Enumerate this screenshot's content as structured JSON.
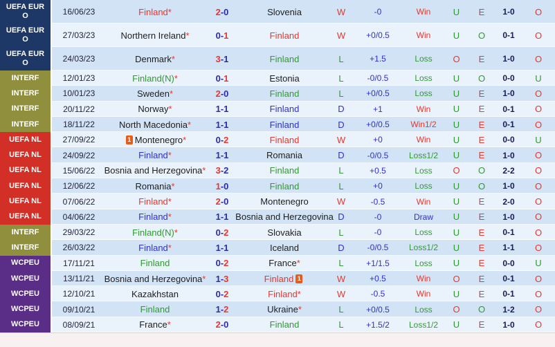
{
  "score_sep": "-",
  "card_label": "1",
  "colors": {
    "euro": "#1d3866",
    "interf": "#8f8f3d",
    "nl": "#d22f26",
    "wcpeu": "#5a2d87",
    "red": "#e8372c",
    "green": "#2e9b2e",
    "blue": "#3030d0",
    "navy": "#2c2caa",
    "dark": "#1e1e1e",
    "score2": "#1b1b55",
    "row_odd": "#d2e3f5",
    "row_even": "#eaf2fb",
    "card": "#e85c17",
    "footer": "#f7f2f1"
  },
  "rows": [
    {
      "tall": true,
      "comp_key": "euro",
      "comp_label": "UEFA EURO",
      "date": "16/06/23",
      "home": {
        "name": "Finland",
        "mark": "*",
        "c": "red"
      },
      "score": {
        "h": "2",
        "hc": "red",
        "a": "0",
        "ac": "navy"
      },
      "away": {
        "name": "Slovenia",
        "mark": "",
        "c": "dark"
      },
      "wdl": {
        "t": "W",
        "c": "red"
      },
      "hcap": "-0",
      "res": {
        "t": "Win",
        "c": "red"
      },
      "ou1": {
        "t": "U",
        "c": "green"
      },
      "eo": {
        "t": "E",
        "c": "red"
      },
      "sc2": "1-0",
      "ou2": {
        "t": "O",
        "c": "red"
      }
    },
    {
      "tall": true,
      "comp_key": "euro",
      "comp_label": "UEFA EURO",
      "date": "27/03/23",
      "home": {
        "name": "Northern Ireland",
        "mark": "*",
        "c": "dark"
      },
      "score": {
        "h": "0",
        "hc": "navy",
        "a": "1",
        "ac": "red"
      },
      "away": {
        "name": "Finland",
        "mark": "",
        "c": "red"
      },
      "wdl": {
        "t": "W",
        "c": "red"
      },
      "hcap": "+0/0.5",
      "res": {
        "t": "Win",
        "c": "red"
      },
      "ou1": {
        "t": "U",
        "c": "green"
      },
      "eo": {
        "t": "O",
        "c": "green"
      },
      "sc2": "0-1",
      "ou2": {
        "t": "O",
        "c": "red"
      }
    },
    {
      "tall": true,
      "comp_key": "euro",
      "comp_label": "UEFA EURO",
      "date": "24/03/23",
      "home": {
        "name": "Denmark",
        "mark": "*",
        "c": "dark"
      },
      "score": {
        "h": "3",
        "hc": "red",
        "a": "1",
        "ac": "navy"
      },
      "away": {
        "name": "Finland",
        "mark": "",
        "c": "green"
      },
      "wdl": {
        "t": "L",
        "c": "green"
      },
      "hcap": "+1.5",
      "res": {
        "t": "Loss",
        "c": "green"
      },
      "ou1": {
        "t": "O",
        "c": "red"
      },
      "eo": {
        "t": "E",
        "c": "red"
      },
      "sc2": "1-0",
      "ou2": {
        "t": "O",
        "c": "red"
      }
    },
    {
      "tall": false,
      "comp_key": "interf",
      "comp_label": "INTERF",
      "date": "12/01/23",
      "home": {
        "name": "Finland(N)",
        "mark": "*",
        "c": "green"
      },
      "score": {
        "h": "0",
        "hc": "navy",
        "a": "1",
        "ac": "red"
      },
      "away": {
        "name": "Estonia",
        "mark": "",
        "c": "dark"
      },
      "wdl": {
        "t": "L",
        "c": "green"
      },
      "hcap": "-0/0.5",
      "res": {
        "t": "Loss",
        "c": "green"
      },
      "ou1": {
        "t": "U",
        "c": "green"
      },
      "eo": {
        "t": "O",
        "c": "green"
      },
      "sc2": "0-0",
      "ou2": {
        "t": "U",
        "c": "green"
      }
    },
    {
      "tall": false,
      "comp_key": "interf",
      "comp_label": "INTERF",
      "date": "10/01/23",
      "home": {
        "name": "Sweden",
        "mark": "*",
        "c": "dark"
      },
      "score": {
        "h": "2",
        "hc": "red",
        "a": "0",
        "ac": "navy"
      },
      "away": {
        "name": "Finland",
        "mark": "",
        "c": "green"
      },
      "wdl": {
        "t": "L",
        "c": "green"
      },
      "hcap": "+0/0.5",
      "res": {
        "t": "Loss",
        "c": "green"
      },
      "ou1": {
        "t": "U",
        "c": "green"
      },
      "eo": {
        "t": "E",
        "c": "red"
      },
      "sc2": "1-0",
      "ou2": {
        "t": "O",
        "c": "red"
      }
    },
    {
      "tall": false,
      "comp_key": "interf",
      "comp_label": "INTERF",
      "date": "20/11/22",
      "home": {
        "name": "Norway",
        "mark": "*",
        "c": "dark"
      },
      "score": {
        "h": "1",
        "hc": "navy",
        "a": "1",
        "ac": "navy"
      },
      "away": {
        "name": "Finland",
        "mark": "",
        "c": "blue"
      },
      "wdl": {
        "t": "D",
        "c": "blue"
      },
      "hcap": "+1",
      "res": {
        "t": "Win",
        "c": "red"
      },
      "ou1": {
        "t": "U",
        "c": "green"
      },
      "eo": {
        "t": "E",
        "c": "red"
      },
      "sc2": "0-1",
      "ou2": {
        "t": "O",
        "c": "red"
      }
    },
    {
      "tall": false,
      "comp_key": "interf",
      "comp_label": "INTERF",
      "date": "18/11/22",
      "home": {
        "name": "North Macedonia",
        "mark": "*",
        "c": "dark"
      },
      "score": {
        "h": "1",
        "hc": "navy",
        "a": "1",
        "ac": "navy"
      },
      "away": {
        "name": "Finland",
        "mark": "",
        "c": "blue"
      },
      "wdl": {
        "t": "D",
        "c": "blue"
      },
      "hcap": "+0/0.5",
      "res": {
        "t": "Win1/2",
        "c": "red"
      },
      "ou1": {
        "t": "U",
        "c": "green"
      },
      "eo": {
        "t": "E",
        "c": "red"
      },
      "sc2": "0-1",
      "ou2": {
        "t": "O",
        "c": "red"
      }
    },
    {
      "tall": false,
      "comp_key": "nl",
      "comp_label": "UEFA NL",
      "date": "27/09/22",
      "home": {
        "name": "Montenegro",
        "mark": "*",
        "c": "dark",
        "card": "before"
      },
      "score": {
        "h": "0",
        "hc": "navy",
        "a": "2",
        "ac": "red"
      },
      "away": {
        "name": "Finland",
        "mark": "",
        "c": "red"
      },
      "wdl": {
        "t": "W",
        "c": "red"
      },
      "hcap": "+0",
      "res": {
        "t": "Win",
        "c": "red"
      },
      "ou1": {
        "t": "U",
        "c": "green"
      },
      "eo": {
        "t": "E",
        "c": "red"
      },
      "sc2": "0-0",
      "ou2": {
        "t": "U",
        "c": "green"
      }
    },
    {
      "tall": false,
      "comp_key": "nl",
      "comp_label": "UEFA NL",
      "date": "24/09/22",
      "home": {
        "name": "Finland",
        "mark": "*",
        "c": "blue"
      },
      "score": {
        "h": "1",
        "hc": "navy",
        "a": "1",
        "ac": "navy"
      },
      "away": {
        "name": "Romania",
        "mark": "",
        "c": "dark"
      },
      "wdl": {
        "t": "D",
        "c": "blue"
      },
      "hcap": "-0/0.5",
      "res": {
        "t": "Loss1/2",
        "c": "green"
      },
      "ou1": {
        "t": "U",
        "c": "green"
      },
      "eo": {
        "t": "E",
        "c": "red"
      },
      "sc2": "1-0",
      "ou2": {
        "t": "O",
        "c": "red"
      }
    },
    {
      "tall": false,
      "comp_key": "nl",
      "comp_label": "UEFA NL",
      "date": "15/06/22",
      "home": {
        "name": "Bosnia and Herzegovina",
        "mark": "*",
        "c": "dark"
      },
      "score": {
        "h": "3",
        "hc": "red",
        "a": "2",
        "ac": "navy"
      },
      "away": {
        "name": "Finland",
        "mark": "",
        "c": "green"
      },
      "wdl": {
        "t": "L",
        "c": "green"
      },
      "hcap": "+0.5",
      "res": {
        "t": "Loss",
        "c": "green"
      },
      "ou1": {
        "t": "O",
        "c": "red"
      },
      "eo": {
        "t": "O",
        "c": "green"
      },
      "sc2": "2-2",
      "ou2": {
        "t": "O",
        "c": "red"
      }
    },
    {
      "tall": false,
      "comp_key": "nl",
      "comp_label": "UEFA NL",
      "date": "12/06/22",
      "home": {
        "name": "Romania",
        "mark": "*",
        "c": "dark"
      },
      "score": {
        "h": "1",
        "hc": "red",
        "a": "0",
        "ac": "navy"
      },
      "away": {
        "name": "Finland",
        "mark": "",
        "c": "green"
      },
      "wdl": {
        "t": "L",
        "c": "green"
      },
      "hcap": "+0",
      "res": {
        "t": "Loss",
        "c": "green"
      },
      "ou1": {
        "t": "U",
        "c": "green"
      },
      "eo": {
        "t": "O",
        "c": "green"
      },
      "sc2": "1-0",
      "ou2": {
        "t": "O",
        "c": "red"
      }
    },
    {
      "tall": false,
      "comp_key": "nl",
      "comp_label": "UEFA NL",
      "date": "07/06/22",
      "home": {
        "name": "Finland",
        "mark": "*",
        "c": "red"
      },
      "score": {
        "h": "2",
        "hc": "red",
        "a": "0",
        "ac": "navy"
      },
      "away": {
        "name": "Montenegro",
        "mark": "",
        "c": "dark"
      },
      "wdl": {
        "t": "W",
        "c": "red"
      },
      "hcap": "-0.5",
      "res": {
        "t": "Win",
        "c": "red"
      },
      "ou1": {
        "t": "U",
        "c": "green"
      },
      "eo": {
        "t": "E",
        "c": "red"
      },
      "sc2": "2-0",
      "ou2": {
        "t": "O",
        "c": "red"
      }
    },
    {
      "tall": false,
      "comp_key": "nl",
      "comp_label": "UEFA NL",
      "date": "04/06/22",
      "home": {
        "name": "Finland",
        "mark": "*",
        "c": "blue"
      },
      "score": {
        "h": "1",
        "hc": "navy",
        "a": "1",
        "ac": "navy"
      },
      "away": {
        "name": "Bosnia and Herzegovina",
        "mark": "",
        "c": "dark"
      },
      "wdl": {
        "t": "D",
        "c": "blue"
      },
      "hcap": "-0",
      "res": {
        "t": "Draw",
        "c": "blue"
      },
      "ou1": {
        "t": "U",
        "c": "green"
      },
      "eo": {
        "t": "E",
        "c": "red"
      },
      "sc2": "1-0",
      "ou2": {
        "t": "O",
        "c": "red"
      }
    },
    {
      "tall": false,
      "comp_key": "interf",
      "comp_label": "INTERF",
      "date": "29/03/22",
      "home": {
        "name": "Finland(N)",
        "mark": "*",
        "c": "green"
      },
      "score": {
        "h": "0",
        "hc": "navy",
        "a": "2",
        "ac": "red"
      },
      "away": {
        "name": "Slovakia",
        "mark": "",
        "c": "dark"
      },
      "wdl": {
        "t": "L",
        "c": "green"
      },
      "hcap": "-0",
      "res": {
        "t": "Loss",
        "c": "green"
      },
      "ou1": {
        "t": "U",
        "c": "green"
      },
      "eo": {
        "t": "E",
        "c": "red"
      },
      "sc2": "0-1",
      "ou2": {
        "t": "O",
        "c": "red"
      }
    },
    {
      "tall": false,
      "comp_key": "interf",
      "comp_label": "INTERF",
      "date": "26/03/22",
      "home": {
        "name": "Finland",
        "mark": "*",
        "c": "blue"
      },
      "score": {
        "h": "1",
        "hc": "navy",
        "a": "1",
        "ac": "navy"
      },
      "away": {
        "name": "Iceland",
        "mark": "",
        "c": "dark"
      },
      "wdl": {
        "t": "D",
        "c": "blue"
      },
      "hcap": "-0/0.5",
      "res": {
        "t": "Loss1/2",
        "c": "green"
      },
      "ou1": {
        "t": "U",
        "c": "green"
      },
      "eo": {
        "t": "E",
        "c": "red"
      },
      "sc2": "1-1",
      "ou2": {
        "t": "O",
        "c": "red"
      }
    },
    {
      "tall": false,
      "comp_key": "wcpeu",
      "comp_label": "WCPEU",
      "date": "17/11/21",
      "home": {
        "name": "Finland",
        "mark": "",
        "c": "green"
      },
      "score": {
        "h": "0",
        "hc": "navy",
        "a": "2",
        "ac": "red"
      },
      "away": {
        "name": "France",
        "mark": "*",
        "c": "dark"
      },
      "wdl": {
        "t": "L",
        "c": "green"
      },
      "hcap": "+1/1.5",
      "res": {
        "t": "Loss",
        "c": "green"
      },
      "ou1": {
        "t": "U",
        "c": "green"
      },
      "eo": {
        "t": "E",
        "c": "red"
      },
      "sc2": "0-0",
      "ou2": {
        "t": "U",
        "c": "green"
      }
    },
    {
      "tall": false,
      "comp_key": "wcpeu",
      "comp_label": "WCPEU",
      "date": "13/11/21",
      "home": {
        "name": "Bosnia and Herzegovina",
        "mark": "*",
        "c": "dark"
      },
      "score": {
        "h": "1",
        "hc": "navy",
        "a": "3",
        "ac": "red"
      },
      "away": {
        "name": "Finland",
        "mark": "",
        "c": "red",
        "card": "after"
      },
      "wdl": {
        "t": "W",
        "c": "red"
      },
      "hcap": "+0.5",
      "res": {
        "t": "Win",
        "c": "red"
      },
      "ou1": {
        "t": "O",
        "c": "red"
      },
      "eo": {
        "t": "E",
        "c": "red"
      },
      "sc2": "0-1",
      "ou2": {
        "t": "O",
        "c": "red"
      }
    },
    {
      "tall": false,
      "comp_key": "wcpeu",
      "comp_label": "WCPEU",
      "date": "12/10/21",
      "home": {
        "name": "Kazakhstan",
        "mark": "",
        "c": "dark"
      },
      "score": {
        "h": "0",
        "hc": "navy",
        "a": "2",
        "ac": "red"
      },
      "away": {
        "name": "Finland",
        "mark": "*",
        "c": "red"
      },
      "wdl": {
        "t": "W",
        "c": "red"
      },
      "hcap": "-0.5",
      "res": {
        "t": "Win",
        "c": "red"
      },
      "ou1": {
        "t": "U",
        "c": "green"
      },
      "eo": {
        "t": "E",
        "c": "red"
      },
      "sc2": "0-1",
      "ou2": {
        "t": "O",
        "c": "red"
      }
    },
    {
      "tall": false,
      "comp_key": "wcpeu",
      "comp_label": "WCPEU",
      "date": "09/10/21",
      "home": {
        "name": "Finland",
        "mark": "",
        "c": "green"
      },
      "score": {
        "h": "1",
        "hc": "navy",
        "a": "2",
        "ac": "red"
      },
      "away": {
        "name": "Ukraine",
        "mark": "*",
        "c": "dark"
      },
      "wdl": {
        "t": "L",
        "c": "green"
      },
      "hcap": "+0/0.5",
      "res": {
        "t": "Loss",
        "c": "green"
      },
      "ou1": {
        "t": "O",
        "c": "red"
      },
      "eo": {
        "t": "O",
        "c": "green"
      },
      "sc2": "1-2",
      "ou2": {
        "t": "O",
        "c": "red"
      }
    },
    {
      "tall": false,
      "comp_key": "wcpeu",
      "comp_label": "WCPEU",
      "date": "08/09/21",
      "home": {
        "name": "France",
        "mark": "*",
        "c": "dark"
      },
      "score": {
        "h": "2",
        "hc": "red",
        "a": "0",
        "ac": "navy"
      },
      "away": {
        "name": "Finland",
        "mark": "",
        "c": "green"
      },
      "wdl": {
        "t": "L",
        "c": "green"
      },
      "hcap": "+1.5/2",
      "res": {
        "t": "Loss1/2",
        "c": "green"
      },
      "ou1": {
        "t": "U",
        "c": "green"
      },
      "eo": {
        "t": "E",
        "c": "red"
      },
      "sc2": "1-0",
      "ou2": {
        "t": "O",
        "c": "red"
      }
    }
  ]
}
